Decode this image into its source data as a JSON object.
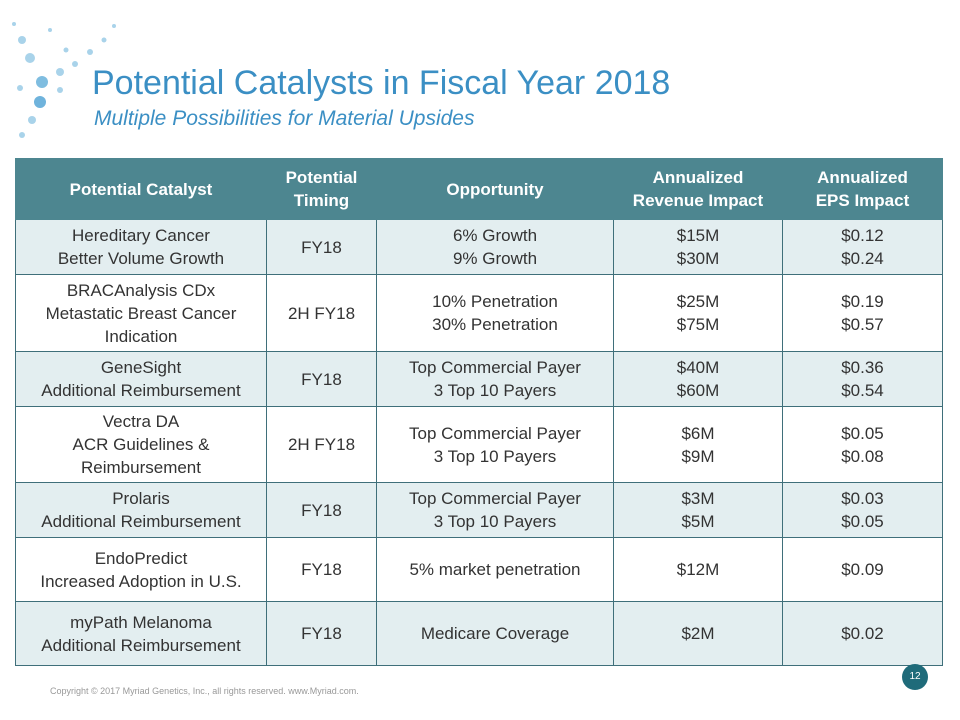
{
  "header": {
    "title": "Potential Catalysts in Fiscal Year 2018",
    "subtitle": "Multiple Possibilities for Material Upsides"
  },
  "table": {
    "columns": [
      [
        "Potential Catalyst"
      ],
      [
        "Potential",
        "Timing"
      ],
      [
        "Opportunity"
      ],
      [
        "Annualized",
        "Revenue Impact"
      ],
      [
        "Annualized",
        "EPS Impact"
      ]
    ],
    "rows": [
      [
        [
          "Hereditary Cancer",
          "Better Volume Growth"
        ],
        [
          "FY18"
        ],
        [
          "6% Growth",
          "9% Growth"
        ],
        [
          "$15M",
          "$30M"
        ],
        [
          "$0.12",
          "$0.24"
        ]
      ],
      [
        [
          "BRACAnalysis CDx",
          "Metastatic Breast Cancer",
          "Indication"
        ],
        [
          "2H FY18"
        ],
        [
          "10% Penetration",
          "30% Penetration"
        ],
        [
          "$25M",
          "$75M"
        ],
        [
          "$0.19",
          "$0.57"
        ]
      ],
      [
        [
          "GeneSight",
          "Additional Reimbursement"
        ],
        [
          "FY18"
        ],
        [
          "Top Commercial Payer",
          "3 Top 10 Payers"
        ],
        [
          "$40M",
          "$60M"
        ],
        [
          "$0.36",
          "$0.54"
        ]
      ],
      [
        [
          "Vectra DA",
          "ACR Guidelines &",
          "Reimbursement"
        ],
        [
          "2H FY18"
        ],
        [
          "Top Commercial Payer",
          "3 Top 10 Payers"
        ],
        [
          "$6M",
          "$9M"
        ],
        [
          "$0.05",
          "$0.08"
        ]
      ],
      [
        [
          "Prolaris",
          "Additional Reimbursement"
        ],
        [
          "FY18"
        ],
        [
          "Top Commercial Payer",
          "3 Top 10 Payers"
        ],
        [
          "$3M",
          "$5M"
        ],
        [
          "$0.03",
          "$0.05"
        ]
      ],
      [
        [
          "EndoPredict",
          "Increased Adoption in U.S."
        ],
        [
          "FY18"
        ],
        [
          "5% market penetration"
        ],
        [
          "$12M"
        ],
        [
          "$0.09"
        ]
      ],
      [
        [
          "myPath Melanoma",
          "Additional Reimbursement"
        ],
        [
          "FY18"
        ],
        [
          "Medicare Coverage"
        ],
        [
          "$2M"
        ],
        [
          "$0.02"
        ]
      ]
    ]
  },
  "footer": {
    "copyright": "Copyright © 2017 Myriad Genetics, Inc., all rights reserved.  www.Myriad.com.",
    "page": "12"
  }
}
